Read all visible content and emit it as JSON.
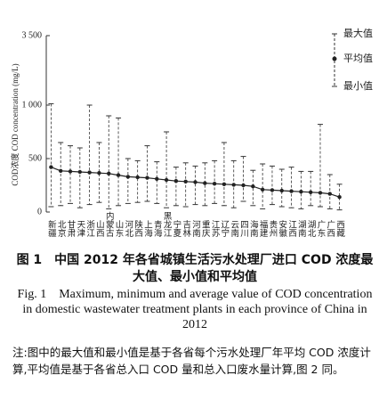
{
  "chart_data": {
    "type": "range",
    "y_label": "COD浓度 COD concentration (mg/L)",
    "categories": [
      "新疆",
      "北京",
      "甘肃",
      "天津",
      "浙江",
      "山西",
      "内蒙古",
      "山东",
      "河北",
      "陕西",
      "上海",
      "青海",
      "黑龙江",
      "宁夏",
      "吉林",
      "河南",
      "重庆",
      "江苏",
      "辽宁",
      "云南",
      "四川",
      "海南",
      "福建",
      "贵州",
      "安徽",
      "江西",
      "湖南",
      "湖北",
      "广东",
      "广西",
      "西藏"
    ],
    "series": [
      {
        "name": "最大值",
        "color": "#333333",
        "values": [
          1050,
          650,
          620,
          600,
          1000,
          650,
          900,
          880,
          500,
          480,
          620,
          470,
          750,
          420,
          460,
          430,
          460,
          480,
          650,
          480,
          520,
          390,
          450,
          430,
          400,
          420,
          380,
          380,
          820,
          350,
          260
        ]
      },
      {
        "name": "平均值",
        "color": "#222222",
        "values": [
          420,
          385,
          380,
          375,
          370,
          365,
          360,
          345,
          330,
          325,
          320,
          310,
          300,
          290,
          285,
          280,
          270,
          265,
          260,
          255,
          250,
          240,
          210,
          205,
          200,
          195,
          190,
          185,
          180,
          170,
          140
        ]
      },
      {
        "name": "最小值",
        "color": "#333333",
        "values": [
          50,
          60,
          80,
          40,
          70,
          90,
          30,
          60,
          80,
          90,
          100,
          80,
          40,
          60,
          50,
          70,
          60,
          80,
          60,
          40,
          100,
          60,
          30,
          70,
          50,
          40,
          30,
          60,
          50,
          30,
          20
        ]
      }
    ],
    "ylim": [
      0,
      3500
    ],
    "yticks": [
      0,
      500,
      {
        "value": 1000,
        "label": "1 000"
      },
      {
        "value": 3500,
        "label": "3 500"
      }
    ]
  },
  "caption": {
    "zh_title": "图 1　中国 2012 年各省城镇生活污水处理厂进口 COD 浓度最大值、最小值和平均值",
    "en_title": "Fig. 1　Maximum, minimum and average value of COD concentration in domestic wastewater treatment plants in each province of China in 2012",
    "note": "注:图中的最大值和最小值是基于各省每个污水处理厂年平均 COD 浓度计算,平均值是基于各省总入口 COD 量和总入口废水量计算,图 2 同。"
  }
}
